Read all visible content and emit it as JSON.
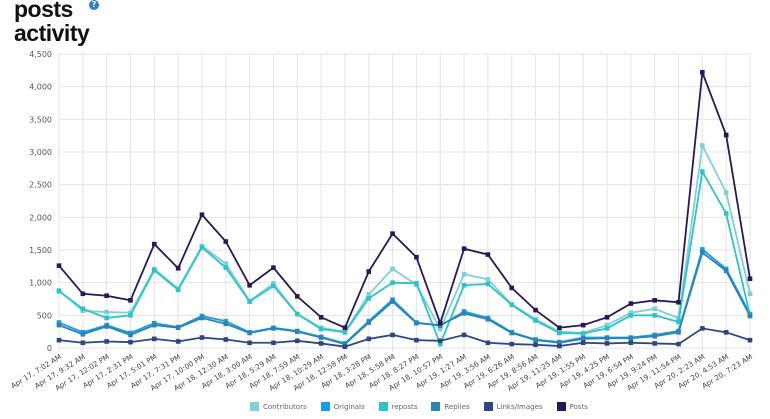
{
  "title_line1": "posts",
  "title_line2": "activity",
  "help_icon": "question-circle-icon",
  "chart_data": {
    "type": "line",
    "ylim": [
      0,
      4500
    ],
    "yticks": [
      0,
      500,
      1000,
      1500,
      2000,
      2500,
      3000,
      3500,
      4000,
      4500
    ],
    "ytick_labels": [
      "0",
      "500",
      "1,000",
      "1,500",
      "2,000",
      "2,500",
      "3,000",
      "3,500",
      "4,000",
      "4,500"
    ],
    "grid": true,
    "legend_position": "bottom",
    "categories": [
      "Apr 17, 7:02 AM",
      "Apr 17, 9:32 AM",
      "Apr 17, 12:02 PM",
      "Apr 17, 2:31 PM",
      "Apr 17, 5:01 PM",
      "Apr 17, 7:31 PM",
      "Apr 17, 10:00 PM",
      "Apr 18, 12:30 AM",
      "Apr 18, 3:00 AM",
      "Apr 18, 5:29 AM",
      "Apr 18, 7:59 AM",
      "Apr 18, 10:29 AM",
      "Apr 18, 12:58 PM",
      "Apr 18, 3:28 PM",
      "Apr 18, 5:58 PM",
      "Apr 18, 8:27 PM",
      "Apr 18, 10:57 PM",
      "Apr 19, 1:27 AM",
      "Apr 19, 3:56 AM",
      "Apr 19, 6:26 AM",
      "Apr 19, 8:56 AM",
      "Apr 19, 11:25 AM",
      "Apr 19, 1:55 PM",
      "Apr 19, 4:25 PM",
      "Apr 19, 6:54 PM",
      "Apr 19, 9:24 PM",
      "Apr 19, 11:54 PM",
      "Apr 20, 2:23 AM",
      "Apr 20, 4:53 AM",
      "Apr 20, 7:23 AM"
    ],
    "series": [
      {
        "name": "Contributors",
        "color": "#7fcfd6",
        "values": [
          880,
          570,
          550,
          540,
          1210,
          910,
          1560,
          1290,
          720,
          990,
          520,
          310,
          250,
          820,
          1210,
          970,
          290,
          1130,
          1050,
          670,
          440,
          250,
          230,
          350,
          540,
          600,
          460,
          3100,
          2380,
          830
        ]
      },
      {
        "name": "Originals",
        "color": "#1a9be6",
        "values": [
          390,
          240,
          350,
          230,
          380,
          320,
          490,
          410,
          240,
          310,
          260,
          170,
          70,
          410,
          740,
          390,
          340,
          560,
          460,
          240,
          130,
          90,
          160,
          160,
          160,
          200,
          260,
          1510,
          1210,
          520
        ]
      },
      {
        "name": "reposts",
        "color": "#2cc4c9",
        "values": [
          870,
          600,
          460,
          500,
          1190,
          890,
          1540,
          1230,
          710,
          950,
          520,
          290,
          240,
          760,
          1000,
          990,
          60,
          960,
          980,
          660,
          420,
          230,
          220,
          300,
          500,
          500,
          400,
          2700,
          2060,
          500
        ]
      },
      {
        "name": "Replies",
        "color": "#2a85b0",
        "values": [
          350,
          210,
          330,
          200,
          350,
          310,
          460,
          370,
          230,
          300,
          250,
          160,
          60,
          390,
          710,
          380,
          350,
          530,
          440,
          230,
          120,
          80,
          140,
          150,
          150,
          180,
          240,
          1460,
          1180,
          490
        ]
      },
      {
        "name": "Links/Images",
        "color": "#2e4682",
        "values": [
          120,
          80,
          100,
          90,
          140,
          100,
          160,
          130,
          80,
          80,
          110,
          70,
          20,
          140,
          200,
          120,
          110,
          200,
          80,
          60,
          50,
          30,
          80,
          70,
          80,
          70,
          60,
          300,
          240,
          120
        ]
      },
      {
        "name": "Posts",
        "color": "#2a1758",
        "values": [
          1260,
          830,
          800,
          730,
          1590,
          1220,
          2040,
          1630,
          960,
          1230,
          790,
          470,
          310,
          1170,
          1750,
          1390,
          380,
          1520,
          1430,
          920,
          580,
          310,
          350,
          470,
          680,
          730,
          700,
          4220,
          3260,
          1060
        ]
      }
    ]
  }
}
